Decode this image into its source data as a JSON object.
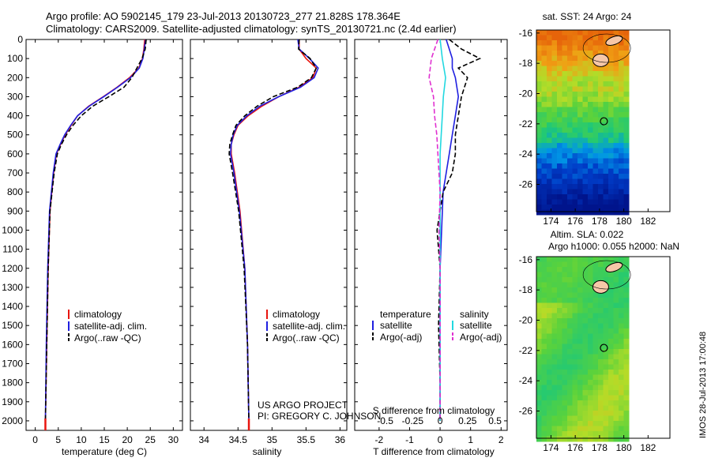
{
  "header": {
    "line1": "Argo profile: AO 5902145_179 23-Jul-2013 20130723_277 21.828S 178.364E",
    "line2": "Climatology: CARS2009. Satellite-adjusted climatology: synTS_20130721.nc (2.4d earlier)"
  },
  "colors": {
    "clim": "#e8150f",
    "sat": "#1f1fe0",
    "argo": "#000000",
    "sal_sat": "#22d8e0",
    "sal_argo": "#e030d0"
  },
  "credits": {
    "line1": "US ARGO PROJECT",
    "line2": "PI: GREGORY C. JOHNSON"
  },
  "timestamp": "IMOS 28-Jul-2013 17:00:48",
  "chart_data": [
    {
      "type": "line",
      "xlabel": "temperature (deg C)",
      "ylabel": "",
      "xlim": [
        -2,
        32
      ],
      "ylim": [
        0,
        2050
      ],
      "xticks": [
        0,
        5,
        10,
        15,
        20,
        25,
        30
      ],
      "yticks": [
        0,
        100,
        200,
        300,
        400,
        500,
        600,
        700,
        800,
        900,
        1000,
        1100,
        1200,
        1300,
        1400,
        1500,
        1600,
        1700,
        1800,
        1900,
        2000
      ],
      "legend": [
        "climatology",
        "satellite-adj. clim.",
        "Argo(..raw -QC)"
      ],
      "series": [
        {
          "name": "climatology",
          "x": [
            23.8,
            23.6,
            23.3,
            22.5,
            20.5,
            17.8,
            14.8,
            11.6,
            9.2,
            7.8,
            6.5,
            5.5,
            4.6,
            4.0,
            3.2,
            2.8,
            2.5,
            2.2
          ],
          "y": [
            0,
            50,
            100,
            150,
            200,
            250,
            300,
            350,
            400,
            450,
            500,
            550,
            600,
            700,
            900,
            1200,
            1600,
            2000
          ]
        },
        {
          "name": "satellite-adj. clim.",
          "x": [
            24.0,
            23.7,
            23.4,
            22.6,
            20.7,
            17.9,
            14.9,
            11.7,
            9.2,
            7.7,
            6.4,
            5.4,
            4.5,
            3.9,
            3.1,
            2.7,
            2.4,
            2.2
          ],
          "y": [
            0,
            50,
            100,
            150,
            200,
            250,
            300,
            350,
            400,
            450,
            500,
            550,
            600,
            700,
            900,
            1200,
            1600,
            2000
          ]
        },
        {
          "name": "Argo(..raw -QC)",
          "x": [
            24.1,
            23.9,
            23.2,
            22.1,
            21.0,
            19.3,
            16.0,
            12.5,
            10.0,
            8.2,
            6.8,
            5.7,
            4.8,
            4.1,
            3.2,
            2.8,
            2.5,
            2.2
          ],
          "y": [
            0,
            50,
            100,
            150,
            200,
            250,
            300,
            350,
            400,
            450,
            500,
            550,
            600,
            700,
            900,
            1200,
            1600,
            2000
          ]
        }
      ]
    },
    {
      "type": "line",
      "xlabel": "salinity",
      "ylabel": "",
      "xlim": [
        33.8,
        36.1
      ],
      "ylim": [
        0,
        2050
      ],
      "xticks": [
        34,
        34.5,
        35,
        35.5,
        36
      ],
      "legend": [
        "climatology",
        "satellite-adj. clim.",
        "Argo(..raw -QC)"
      ],
      "series": [
        {
          "name": "climatology",
          "x": [
            35.4,
            35.4,
            35.5,
            35.65,
            35.6,
            35.4,
            35.1,
            34.85,
            34.65,
            34.5,
            34.44,
            34.4,
            34.4,
            34.45,
            34.53,
            34.6,
            34.64,
            34.66
          ],
          "y": [
            0,
            50,
            100,
            150,
            200,
            250,
            300,
            350,
            400,
            450,
            500,
            550,
            600,
            700,
            900,
            1200,
            1600,
            2000
          ]
        },
        {
          "name": "satellite-adj. clim.",
          "x": [
            35.38,
            35.4,
            35.55,
            35.68,
            35.62,
            35.42,
            35.1,
            34.82,
            34.63,
            34.49,
            34.43,
            34.4,
            34.39,
            34.44,
            34.52,
            34.6,
            34.64,
            34.66
          ],
          "y": [
            0,
            50,
            100,
            150,
            200,
            250,
            300,
            350,
            400,
            450,
            500,
            550,
            600,
            700,
            900,
            1200,
            1600,
            2000
          ]
        },
        {
          "name": "Argo(..raw -QC)",
          "x": [
            35.4,
            35.39,
            35.56,
            35.65,
            35.58,
            35.38,
            35.02,
            34.78,
            34.6,
            34.47,
            34.42,
            34.38,
            34.37,
            34.42,
            34.51,
            34.59,
            34.64,
            34.66
          ],
          "y": [
            0,
            50,
            100,
            150,
            200,
            250,
            300,
            350,
            400,
            450,
            500,
            550,
            600,
            700,
            900,
            1200,
            1600,
            2000
          ]
        }
      ]
    },
    {
      "type": "line",
      "xlabel": "T difference from climatology",
      "xlabel_top": "S difference from climatology",
      "xlim": [
        -2.8,
        2.2
      ],
      "ylim": [
        0,
        2050
      ],
      "xticks": [
        -2,
        -1,
        0,
        1,
        2
      ],
      "xticks_s": [
        -0.5,
        -0.25,
        0,
        0.25,
        0.5
      ],
      "legend": {
        "temperature": {
          "title": "temperature",
          "items": [
            "satellite",
            "Argo(-adj)"
          ]
        },
        "salinity": {
          "title": "salinity",
          "items": [
            "satellite",
            "Argo(-adj)"
          ]
        }
      },
      "series": [
        {
          "name": "T satellite",
          "x": [
            0.2,
            0.3,
            0.4,
            0.4,
            0.5,
            0.6,
            0.5,
            0.4,
            0.3,
            0.2,
            0.1,
            0.05,
            0,
            0,
            0,
            0
          ],
          "y": [
            0,
            50,
            100,
            150,
            200,
            300,
            400,
            500,
            600,
            700,
            800,
            1000,
            1200,
            1500,
            1800,
            2000
          ]
        },
        {
          "name": "T Argo(-adj)",
          "x": [
            0.3,
            0.7,
            1.3,
            0.6,
            0.9,
            0.7,
            0.6,
            0.5,
            0.5,
            0.4,
            0.1,
            -0.1,
            0,
            -0.05,
            0,
            0
          ],
          "y": [
            0,
            50,
            100,
            150,
            200,
            300,
            400,
            500,
            600,
            700,
            800,
            1000,
            1200,
            1500,
            1800,
            2000
          ]
        },
        {
          "name": "S satellite",
          "x": [
            0,
            0.02,
            0.05,
            0.03,
            0.02,
            0.01,
            0,
            0,
            0,
            0,
            0,
            0,
            0,
            0
          ],
          "y": [
            0,
            100,
            200,
            300,
            400,
            500,
            600,
            800,
            1000,
            1200,
            1400,
            1600,
            1800,
            2000
          ]
        },
        {
          "name": "S Argo(-adj)",
          "x": [
            -0.02,
            -0.08,
            -0.1,
            -0.06,
            -0.05,
            -0.03,
            -0.02,
            0,
            -0.01,
            0,
            0,
            0,
            0,
            0
          ],
          "y": [
            0,
            100,
            200,
            300,
            400,
            500,
            600,
            800,
            1000,
            1200,
            1400,
            1600,
            1800,
            2000
          ]
        }
      ]
    },
    {
      "type": "heatmap",
      "title": "sat. SST: 24 Argo: 24",
      "xticks": [
        174,
        176,
        178,
        180,
        182
      ],
      "yticks": [
        -16,
        -18,
        -20,
        -22,
        -24,
        -26
      ],
      "xlim": [
        172.8,
        183.8
      ],
      "ylim": [
        -27.8,
        -15.8
      ],
      "argo_position": [
        178.36,
        -21.83
      ]
    },
    {
      "type": "heatmap",
      "title": "Altim. SLA: 0.022",
      "subtitle": "Argo h1000: 0.055 h2000: NaN",
      "xticks": [
        174,
        176,
        178,
        180,
        182
      ],
      "yticks": [
        -16,
        -18,
        -20,
        -22,
        -24,
        -26
      ],
      "xlim": [
        172.8,
        183.8
      ],
      "ylim": [
        -27.8,
        -15.8
      ],
      "argo_position": [
        178.36,
        -21.83
      ]
    }
  ]
}
